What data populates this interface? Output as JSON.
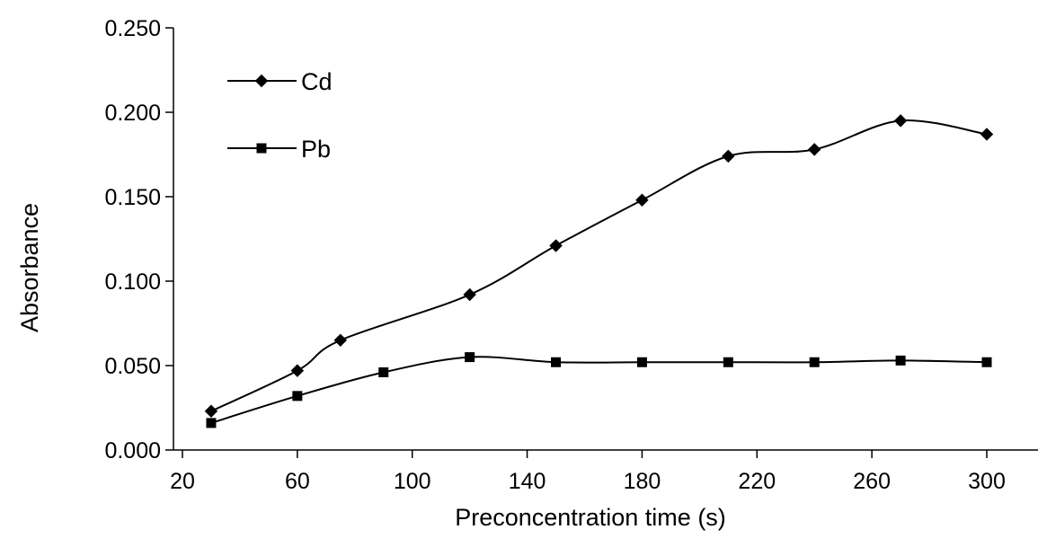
{
  "chart_data": {
    "type": "line",
    "title": "",
    "xlabel": "Preconcentration time (s)",
    "ylabel": "Absorbance",
    "xlim": [
      20,
      300
    ],
    "ylim": [
      0,
      0.25
    ],
    "x_ticks": [
      20,
      60,
      100,
      140,
      180,
      220,
      260,
      300
    ],
    "x_tick_labels": [
      "20",
      "60",
      "100",
      "140",
      "180",
      "220",
      "260",
      "300"
    ],
    "y_ticks": [
      0,
      0.05,
      0.1,
      0.15,
      0.2,
      0.25
    ],
    "y_tick_labels": [
      "0.000",
      "0.050",
      "0.100",
      "0.150",
      "0.200",
      "0.250"
    ],
    "grid": false,
    "legend_position": "top-left",
    "smooth": true,
    "series": [
      {
        "name": "Cd",
        "marker": "diamond",
        "color": "#000000",
        "x": [
          30,
          60,
          75,
          120,
          150,
          180,
          210,
          240,
          270,
          300
        ],
        "y": [
          0.023,
          0.047,
          0.065,
          0.092,
          0.121,
          0.148,
          0.174,
          0.178,
          0.195,
          0.187
        ]
      },
      {
        "name": "Pb",
        "marker": "square",
        "color": "#000000",
        "x": [
          30,
          60,
          90,
          120,
          150,
          180,
          210,
          240,
          270,
          300
        ],
        "y": [
          0.016,
          0.032,
          0.046,
          0.055,
          0.052,
          0.052,
          0.052,
          0.052,
          0.053,
          0.052
        ]
      }
    ]
  }
}
